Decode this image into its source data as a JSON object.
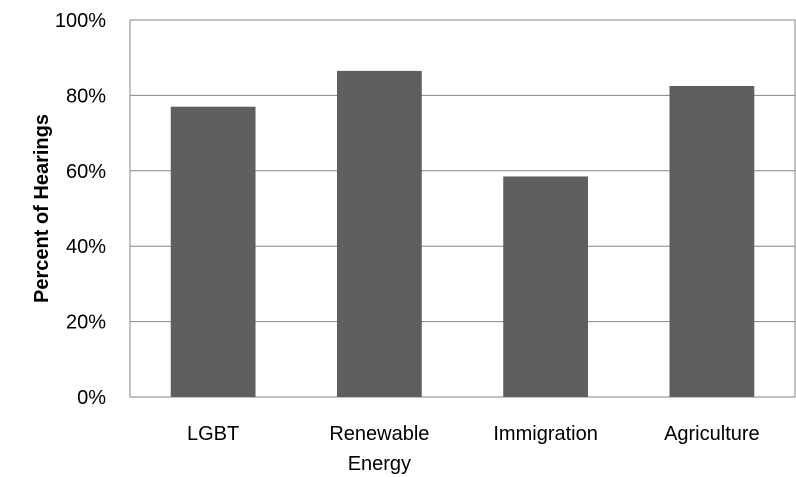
{
  "chart_data": {
    "type": "bar",
    "categories": [
      [
        "LGBT"
      ],
      [
        "Renewable",
        "Energy"
      ],
      [
        "Immigration"
      ],
      [
        "Agriculture"
      ]
    ],
    "values": [
      77,
      86.5,
      58.5,
      82.5
    ],
    "y_ticks": [
      "0%",
      "20%",
      "40%",
      "60%",
      "80%",
      "100%"
    ],
    "title": "",
    "xlabel": "",
    "ylabel": "Percent of Hearings",
    "ylim": [
      0,
      100
    ],
    "grid": true,
    "legend": "none",
    "bar_color": "#5f5f5f",
    "grid_color": "#868686"
  }
}
